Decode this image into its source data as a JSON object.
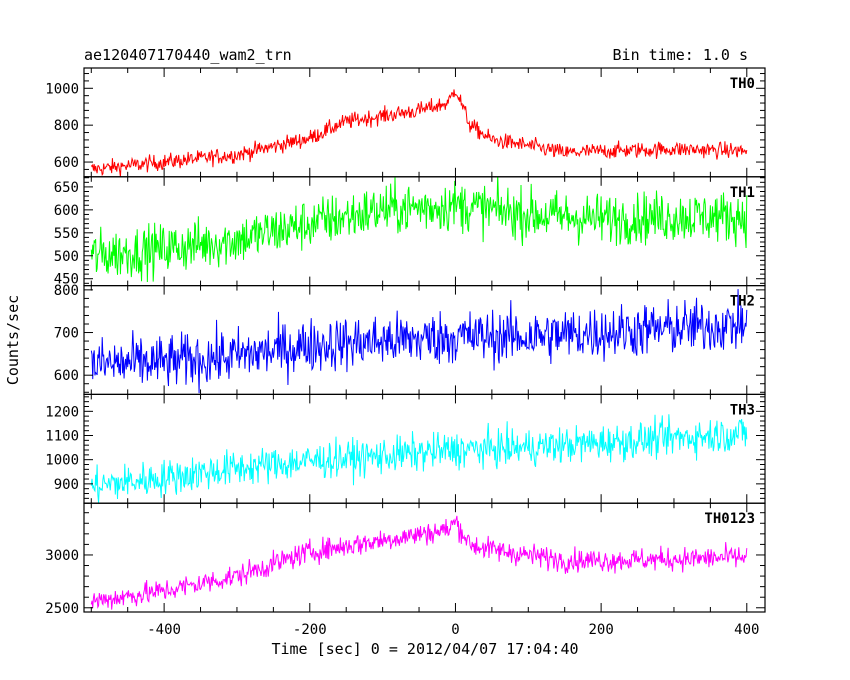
{
  "chart_data": {
    "type": "line",
    "title": "ae120407170440_wam2_trn",
    "bin_time": "Bin time: 1.0 s",
    "xlabel": "Time [sec] 0 = 2012/04/07 17:04:40",
    "ylabel": "Counts/sec",
    "xlim": [
      -510,
      425
    ],
    "xticks": [
      -400,
      -200,
      0,
      200,
      400
    ],
    "panels": [
      {
        "name": "TH0",
        "color": "#ff0000",
        "ylim": [
          520,
          1110
        ],
        "yticks": [
          600,
          800,
          1000
        ],
        "noise": 22,
        "trend": [
          [
            -500,
            560
          ],
          [
            -400,
            600
          ],
          [
            -300,
            640
          ],
          [
            -200,
            730
          ],
          [
            -150,
            820
          ],
          [
            -100,
            850
          ],
          [
            -50,
            880
          ],
          [
            -10,
            920
          ],
          [
            0,
            1000
          ],
          [
            20,
            800
          ],
          [
            50,
            720
          ],
          [
            100,
            690
          ],
          [
            150,
            650
          ],
          [
            200,
            660
          ],
          [
            300,
            670
          ],
          [
            400,
            660
          ]
        ]
      },
      {
        "name": "TH1",
        "color": "#00ff00",
        "ylim": [
          435,
          672
        ],
        "yticks": [
          450,
          500,
          550,
          600,
          650
        ],
        "noise": 28,
        "trend": [
          [
            -500,
            500
          ],
          [
            -400,
            515
          ],
          [
            -300,
            535
          ],
          [
            -200,
            570
          ],
          [
            -100,
            600
          ],
          [
            0,
            610
          ],
          [
            100,
            590
          ],
          [
            200,
            580
          ],
          [
            300,
            585
          ],
          [
            400,
            585
          ]
        ]
      },
      {
        "name": "TH2",
        "color": "#0000ff",
        "ylim": [
          555,
          810
        ],
        "yticks": [
          600,
          700,
          800
        ],
        "noise": 32,
        "trend": [
          [
            -500,
            625
          ],
          [
            -400,
            630
          ],
          [
            -300,
            645
          ],
          [
            -200,
            670
          ],
          [
            -100,
            680
          ],
          [
            0,
            690
          ],
          [
            100,
            690
          ],
          [
            200,
            700
          ],
          [
            300,
            710
          ],
          [
            400,
            720
          ]
        ]
      },
      {
        "name": "TH3",
        "color": "#00ffff",
        "ylim": [
          820,
          1270
        ],
        "yticks": [
          900,
          1000,
          1100,
          1200
        ],
        "noise": 38,
        "trend": [
          [
            -500,
            890
          ],
          [
            -400,
            925
          ],
          [
            -300,
            965
          ],
          [
            -200,
            995
          ],
          [
            -100,
            1015
          ],
          [
            0,
            1040
          ],
          [
            100,
            1050
          ],
          [
            200,
            1070
          ],
          [
            300,
            1090
          ],
          [
            400,
            1110
          ]
        ]
      },
      {
        "name": "TH0123",
        "color": "#ff00ff",
        "ylim": [
          2460,
          3490
        ],
        "yticks": [
          2500,
          3000
        ],
        "noise": 55,
        "trend": [
          [
            -500,
            2560
          ],
          [
            -400,
            2660
          ],
          [
            -300,
            2800
          ],
          [
            -200,
            3030
          ],
          [
            -100,
            3140
          ],
          [
            -10,
            3240
          ],
          [
            0,
            3320
          ],
          [
            20,
            3100
          ],
          [
            50,
            3050
          ],
          [
            100,
            3000
          ],
          [
            150,
            2950
          ],
          [
            200,
            2950
          ],
          [
            300,
            2960
          ],
          [
            400,
            2980
          ]
        ]
      }
    ]
  }
}
